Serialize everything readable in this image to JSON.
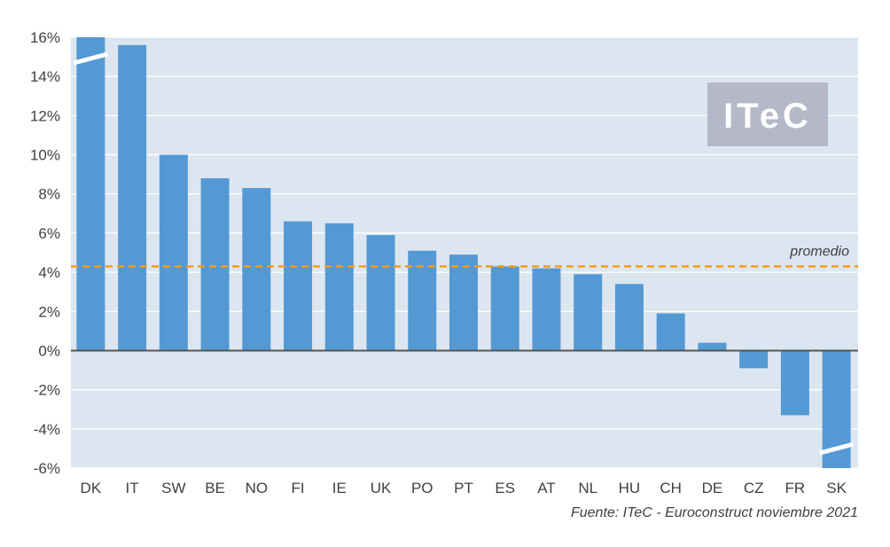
{
  "chart_data": {
    "type": "bar",
    "categories": [
      "DK",
      "IT",
      "SW",
      "BE",
      "NO",
      "FI",
      "IE",
      "UK",
      "PO",
      "PT",
      "ES",
      "AT",
      "NL",
      "HU",
      "CH",
      "DE",
      "CZ",
      "FR",
      "SK"
    ],
    "values": [
      16.0,
      15.6,
      10.0,
      8.8,
      8.3,
      6.6,
      6.5,
      5.9,
      5.1,
      4.9,
      4.3,
      4.2,
      3.9,
      3.4,
      1.9,
      0.4,
      -0.9,
      -3.3,
      -6.0
    ],
    "truncated": [
      "DK",
      "SK"
    ],
    "ylim": [
      -6,
      16
    ],
    "yticks": [
      16,
      14,
      12,
      10,
      8,
      6,
      4,
      2,
      0,
      -2,
      -4,
      -6
    ],
    "ytick_labels": [
      "16%",
      "14%",
      "12%",
      "10%",
      "8%",
      "6%",
      "4%",
      "2%",
      "0%",
      "-2%",
      "-4%",
      "-6%"
    ],
    "grid": true,
    "average": {
      "value": 4.3,
      "label": "promedio",
      "color": "#f39c1a"
    },
    "bar_color": "#5499d4",
    "plot_background": "#dce6f0",
    "title": "",
    "xlabel": "",
    "ylabel": ""
  },
  "logo": {
    "text": "ITeC",
    "background": "#b4b8c8"
  },
  "source": "Fuente: ITeC - Euroconstruct noviembre 2021"
}
